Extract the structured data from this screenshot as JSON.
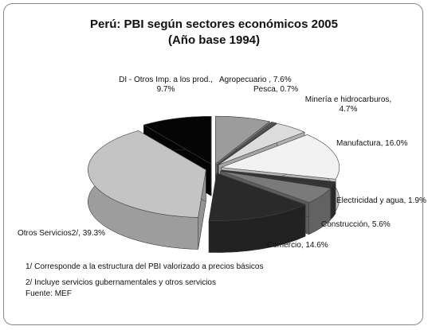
{
  "chart_data": {
    "type": "pie3d",
    "title": "Perú: PBI según sectores económicos 2005",
    "subtitle": "(Año base 1994)",
    "categories": [
      "Agropecuario , 7.6%",
      "Pesca, 0.7%",
      "Minería e hidrocarburos, 4.7%",
      "Manufactura, 16.0%",
      "Electricidad y agua, 1.9%",
      "Construcción, 5.6%",
      "Comercio, 14.6%",
      "Otros Servicios2/, 39.3%",
      "DI - Otros Imp. a los prod., 9.7%"
    ],
    "values": [
      7.6,
      0.7,
      4.7,
      16.0,
      1.9,
      5.6,
      14.6,
      39.3,
      9.7
    ],
    "colors": [
      "#9c9c9c",
      "#555555",
      "#dcdcdc",
      "#f2f2f2",
      "#333333",
      "#7a7a7a",
      "#2a2a2a",
      "#c4c4c4",
      "#050505"
    ],
    "notes": [
      "1/ Corresponde a la estructura del PBI valorizado a precios básicos",
      "2/ Incluye servicios gubernamentales y otros servicios",
      "Fuente: MEF"
    ]
  }
}
